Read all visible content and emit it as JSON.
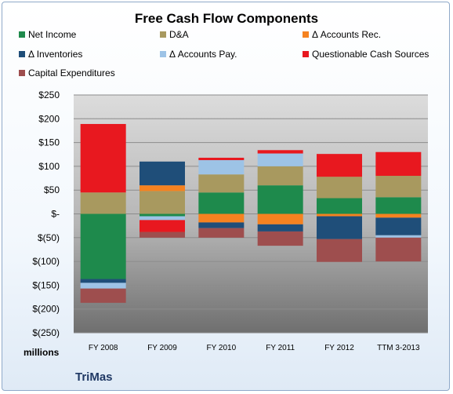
{
  "title": "Free Cash Flow Components",
  "units_label": "millions",
  "company": "TriMas",
  "colors": {
    "Net Income": "#1e8a4c",
    "D&A": "#a8995f",
    "Δ Accounts Rec.": "#f58220",
    "Δ Inventories": "#1f4e79",
    "Δ Accounts Pay.": "#9dc3e6",
    "Questionable Cash Sources": "#e8181f",
    "Capital Expenditures": "#9e4e4e"
  },
  "chart_data": {
    "type": "bar",
    "stacked": true,
    "title": "Free Cash Flow Components",
    "ylabel": "millions",
    "ylim": [
      -250,
      250
    ],
    "yticks": [
      250,
      200,
      150,
      100,
      50,
      0,
      -50,
      -100,
      -150,
      -200,
      -250
    ],
    "ytick_labels": [
      "$250",
      "$200",
      "$150",
      "$100",
      "$50",
      "$-",
      "$(50)",
      "$(100)",
      "$(150)",
      "$(200)",
      "$(250)"
    ],
    "grid": true,
    "legend_position": "top",
    "categories": [
      "FY 2008",
      "FY 2009",
      "FY 2010",
      "FY 2011",
      "FY 2012",
      "TTM 3-2013"
    ],
    "series": [
      {
        "name": "Net Income",
        "values": [
          -137,
          -5,
          45,
          60,
          33,
          35
        ]
      },
      {
        "name": "D&A",
        "values": [
          45,
          48,
          38,
          40,
          45,
          45
        ]
      },
      {
        "name": "Δ Accounts Rec.",
        "values": [
          0,
          12,
          -18,
          -22,
          -5,
          -8
        ]
      },
      {
        "name": "Δ Inventories",
        "values": [
          -8,
          50,
          -12,
          -15,
          -48,
          -37
        ]
      },
      {
        "name": "Δ Accounts Pay.",
        "values": [
          -12,
          -8,
          30,
          27,
          0,
          -5
        ]
      },
      {
        "name": "Questionable Cash Sources",
        "values": [
          144,
          -25,
          5,
          7,
          48,
          50
        ]
      },
      {
        "name": "Capital Expenditures",
        "values": [
          -30,
          -12,
          -20,
          -30,
          -48,
          -50
        ]
      }
    ]
  }
}
